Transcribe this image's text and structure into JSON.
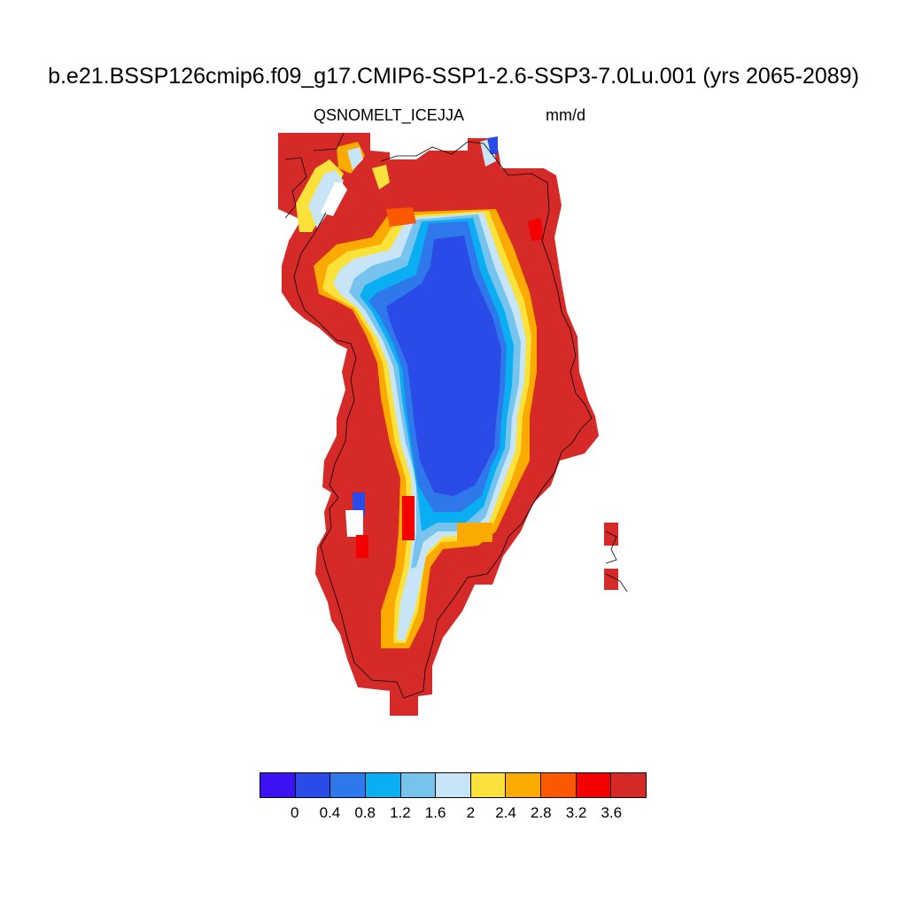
{
  "title": "b.e21.BSSP126cmip6.f09_g17.CMIP6-SSP1-2.6-SSP3-7.0Lu.001 (yrs 2065-2089)",
  "variable": "QSNOMELT_ICE",
  "season": "JJA",
  "units": "mm/d",
  "colorbar": {
    "colors": [
      "#3c12f2",
      "#2a4be8",
      "#2f78ec",
      "#0aaef2",
      "#76c4ee",
      "#c7e5f6",
      "#fbe23a",
      "#fbaa00",
      "#fb5800",
      "#f40000",
      "#d62a28"
    ],
    "labels": [
      "0",
      "0.4",
      "0.8",
      "1.2",
      "1.6",
      "2",
      "2.4",
      "2.8",
      "3.2",
      "3.6"
    ]
  },
  "map_data": {
    "region": "Greenland",
    "field": "snowmelt over ice",
    "interior_value_range": [
      0.4,
      1.2
    ],
    "margin_value_min": 3.6
  }
}
